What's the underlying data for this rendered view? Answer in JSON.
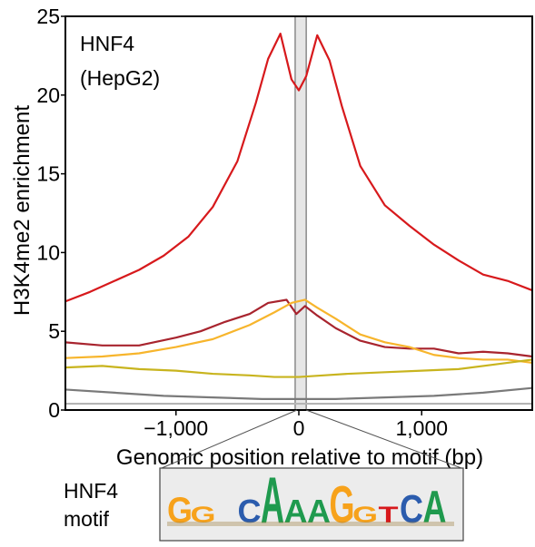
{
  "chart_data": {
    "type": "line",
    "title": "",
    "annotation_lines": [
      "HNF4",
      "(HepG2)"
    ],
    "xlabel": "Genomic position relative to motif (bp)",
    "ylabel": "H3K4me2 enrichment",
    "xlim": [
      -1900,
      1900
    ],
    "ylim": [
      0,
      25
    ],
    "x_ticks": [
      -1000,
      0,
      1000
    ],
    "x_tick_labels": [
      "−1,000",
      "0",
      "1,000"
    ],
    "y_ticks": [
      0,
      5,
      10,
      15,
      20,
      25
    ],
    "y_tick_labels": [
      "0",
      "5",
      "10",
      "15",
      "20",
      "25"
    ],
    "grid": false,
    "motif_band": [
      -30,
      60
    ],
    "series": [
      {
        "color": "#d7191c",
        "x": [
          -1900,
          -1700,
          -1500,
          -1300,
          -1100,
          -900,
          -700,
          -500,
          -350,
          -250,
          -150,
          -60,
          0,
          60,
          150,
          250,
          350,
          500,
          700,
          900,
          1100,
          1300,
          1500,
          1700,
          1900
        ],
        "values": [
          6.9,
          7.5,
          8.2,
          8.9,
          9.8,
          11.0,
          12.9,
          15.8,
          19.5,
          22.3,
          23.9,
          21.0,
          20.3,
          21.2,
          23.8,
          22.2,
          19.3,
          15.5,
          13.0,
          11.7,
          10.5,
          9.5,
          8.6,
          8.2,
          7.6
        ]
      },
      {
        "color": "#a8242e",
        "x": [
          -1900,
          -1600,
          -1300,
          -1000,
          -800,
          -600,
          -400,
          -250,
          -100,
          -20,
          50,
          150,
          300,
          500,
          700,
          900,
          1100,
          1300,
          1500,
          1700,
          1900
        ],
        "values": [
          4.3,
          4.1,
          4.1,
          4.6,
          5.0,
          5.6,
          6.1,
          6.8,
          7.0,
          6.1,
          6.6,
          6.0,
          5.2,
          4.4,
          4.0,
          3.9,
          3.9,
          3.6,
          3.7,
          3.6,
          3.4
        ]
      },
      {
        "color": "#f7b52c",
        "x": [
          -1900,
          -1600,
          -1300,
          -1000,
          -700,
          -400,
          -200,
          -60,
          50,
          150,
          300,
          500,
          700,
          900,
          1100,
          1300,
          1500,
          1700,
          1900
        ],
        "values": [
          3.3,
          3.4,
          3.6,
          4.0,
          4.5,
          5.4,
          6.2,
          6.8,
          7.0,
          6.5,
          5.8,
          4.8,
          4.3,
          4.0,
          3.5,
          3.3,
          3.2,
          3.2,
          3.0
        ]
      },
      {
        "color": "#c8b41e",
        "x": [
          -1900,
          -1600,
          -1300,
          -1000,
          -700,
          -400,
          -200,
          0,
          200,
          400,
          700,
          1000,
          1300,
          1600,
          1900
        ],
        "values": [
          2.7,
          2.8,
          2.6,
          2.5,
          2.3,
          2.2,
          2.1,
          2.1,
          2.2,
          2.3,
          2.4,
          2.5,
          2.6,
          2.9,
          3.2
        ]
      },
      {
        "color": "#7a7a7a",
        "x": [
          -1900,
          -1500,
          -1100,
          -700,
          -300,
          0,
          300,
          700,
          1100,
          1500,
          1900
        ],
        "values": [
          1.3,
          1.1,
          0.9,
          0.8,
          0.7,
          0.7,
          0.7,
          0.8,
          0.9,
          1.1,
          1.4
        ]
      },
      {
        "color": "#b5b5b5",
        "x": [
          -1900,
          -1000,
          0,
          1000,
          1900
        ],
        "values": [
          0.4,
          0.4,
          0.4,
          0.4,
          0.4
        ]
      }
    ]
  },
  "motif": {
    "label_lines": [
      "HNF4",
      "motif"
    ],
    "letters": [
      {
        "char": "G",
        "color": "#f7a21b"
      },
      {
        "char": "G",
        "color": "#f7a21b"
      },
      {
        "char": "",
        "color": ""
      },
      {
        "char": "C",
        "color": "#2b5cad"
      },
      {
        "char": "A",
        "color": "#1f9a4e"
      },
      {
        "char": "A",
        "color": "#1f9a4e"
      },
      {
        "char": "A",
        "color": "#1f9a4e"
      },
      {
        "char": "G",
        "color": "#f7a21b"
      },
      {
        "char": "G",
        "color": "#f7a21b"
      },
      {
        "char": "T",
        "color": "#d7191c"
      },
      {
        "char": "C",
        "color": "#2b5cad"
      },
      {
        "char": "A",
        "color": "#1f9a4e"
      }
    ],
    "weights": [
      0.55,
      0.35,
      0,
      0.5,
      1.0,
      0.5,
      0.5,
      0.8,
      0.35,
      0.35,
      0.6,
      0.7
    ]
  }
}
